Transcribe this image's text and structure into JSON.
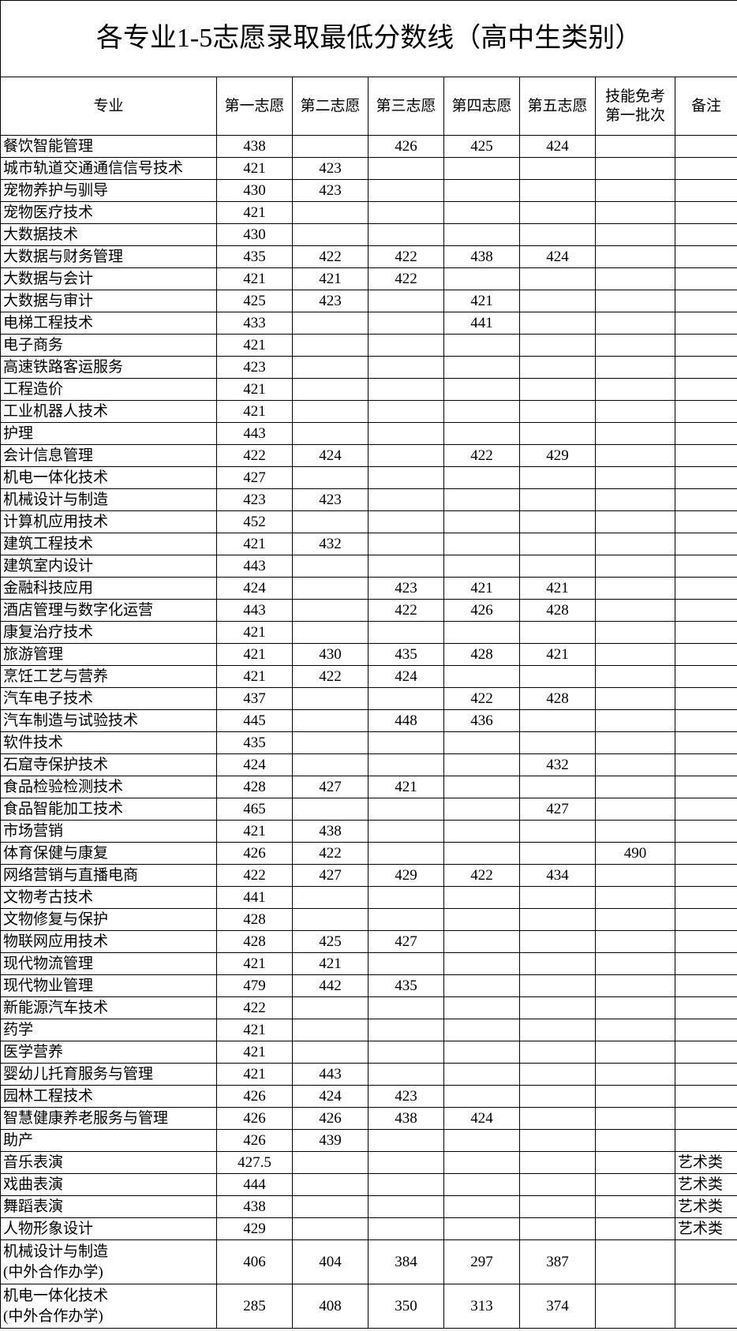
{
  "title": "各专业1-5志愿录取最低分数线（高中生类别）",
  "headers": [
    "专业",
    "第一志愿",
    "第二志愿",
    "第三志愿",
    "第四志愿",
    "第五志愿",
    "技能免考\n第一批次",
    "备注"
  ],
  "rows": [
    [
      "餐饮智能管理",
      "438",
      "",
      "426",
      "425",
      "424",
      "",
      ""
    ],
    [
      "城市轨道交通通信信号技术",
      "421",
      "423",
      "",
      "",
      "",
      "",
      ""
    ],
    [
      "宠物养护与驯导",
      "430",
      "423",
      "",
      "",
      "",
      "",
      ""
    ],
    [
      "宠物医疗技术",
      "421",
      "",
      "",
      "",
      "",
      "",
      ""
    ],
    [
      "大数据技术",
      "430",
      "",
      "",
      "",
      "",
      "",
      ""
    ],
    [
      "大数据与财务管理",
      "435",
      "422",
      "422",
      "438",
      "424",
      "",
      ""
    ],
    [
      "大数据与会计",
      "421",
      "421",
      "422",
      "",
      "",
      "",
      ""
    ],
    [
      "大数据与审计",
      "425",
      "423",
      "",
      "421",
      "",
      "",
      ""
    ],
    [
      "电梯工程技术",
      "433",
      "",
      "",
      "441",
      "",
      "",
      ""
    ],
    [
      "电子商务",
      "421",
      "",
      "",
      "",
      "",
      "",
      ""
    ],
    [
      "高速铁路客运服务",
      "423",
      "",
      "",
      "",
      "",
      "",
      ""
    ],
    [
      "工程造价",
      "421",
      "",
      "",
      "",
      "",
      "",
      ""
    ],
    [
      "工业机器人技术",
      "421",
      "",
      "",
      "",
      "",
      "",
      ""
    ],
    [
      "护理",
      "443",
      "",
      "",
      "",
      "",
      "",
      ""
    ],
    [
      "会计信息管理",
      "422",
      "424",
      "",
      "422",
      "429",
      "",
      ""
    ],
    [
      "机电一体化技术",
      "427",
      "",
      "",
      "",
      "",
      "",
      ""
    ],
    [
      "机械设计与制造",
      "423",
      "423",
      "",
      "",
      "",
      "",
      ""
    ],
    [
      "计算机应用技术",
      "452",
      "",
      "",
      "",
      "",
      "",
      ""
    ],
    [
      "建筑工程技术",
      "421",
      "432",
      "",
      "",
      "",
      "",
      ""
    ],
    [
      "建筑室内设计",
      "443",
      "",
      "",
      "",
      "",
      "",
      ""
    ],
    [
      "金融科技应用",
      "424",
      "",
      "423",
      "421",
      "421",
      "",
      ""
    ],
    [
      "酒店管理与数字化运营",
      "443",
      "",
      "422",
      "426",
      "428",
      "",
      ""
    ],
    [
      "康复治疗技术",
      "421",
      "",
      "",
      "",
      "",
      "",
      ""
    ],
    [
      "旅游管理",
      "421",
      "430",
      "435",
      "428",
      "421",
      "",
      ""
    ],
    [
      "烹饪工艺与营养",
      "421",
      "422",
      "424",
      "",
      "",
      "",
      ""
    ],
    [
      "汽车电子技术",
      "437",
      "",
      "",
      "422",
      "428",
      "",
      ""
    ],
    [
      "汽车制造与试验技术",
      "445",
      "",
      "448",
      "436",
      "",
      "",
      ""
    ],
    [
      "软件技术",
      "435",
      "",
      "",
      "",
      "",
      "",
      ""
    ],
    [
      "石窟寺保护技术",
      "424",
      "",
      "",
      "",
      "432",
      "",
      ""
    ],
    [
      "食品检验检测技术",
      "428",
      "427",
      "421",
      "",
      "",
      "",
      ""
    ],
    [
      "食品智能加工技术",
      "465",
      "",
      "",
      "",
      "427",
      "",
      ""
    ],
    [
      "市场营销",
      "421",
      "438",
      "",
      "",
      "",
      "",
      ""
    ],
    [
      "体育保健与康复",
      "426",
      "422",
      "",
      "",
      "",
      "490",
      ""
    ],
    [
      "网络营销与直播电商",
      "422",
      "427",
      "429",
      "422",
      "434",
      "",
      ""
    ],
    [
      "文物考古技术",
      "441",
      "",
      "",
      "",
      "",
      "",
      ""
    ],
    [
      "文物修复与保护",
      "428",
      "",
      "",
      "",
      "",
      "",
      ""
    ],
    [
      "物联网应用技术",
      "428",
      "425",
      "427",
      "",
      "",
      "",
      ""
    ],
    [
      "现代物流管理",
      "421",
      "421",
      "",
      "",
      "",
      "",
      ""
    ],
    [
      "现代物业管理",
      "479",
      "442",
      "435",
      "",
      "",
      "",
      ""
    ],
    [
      "新能源汽车技术",
      "422",
      "",
      "",
      "",
      "",
      "",
      ""
    ],
    [
      "药学",
      "421",
      "",
      "",
      "",
      "",
      "",
      ""
    ],
    [
      "医学营养",
      "421",
      "",
      "",
      "",
      "",
      "",
      ""
    ],
    [
      "婴幼儿托育服务与管理",
      "421",
      "443",
      "",
      "",
      "",
      "",
      ""
    ],
    [
      "园林工程技术",
      "426",
      "424",
      "423",
      "",
      "",
      "",
      ""
    ],
    [
      "智慧健康养老服务与管理",
      "426",
      "426",
      "438",
      "424",
      "",
      "",
      ""
    ],
    [
      "助产",
      "426",
      "439",
      "",
      "",
      "",
      "",
      ""
    ],
    [
      "音乐表演",
      "427.5",
      "",
      "",
      "",
      "",
      "",
      "艺术类"
    ],
    [
      "戏曲表演",
      "444",
      "",
      "",
      "",
      "",
      "",
      "艺术类"
    ],
    [
      "舞蹈表演",
      "438",
      "",
      "",
      "",
      "",
      "",
      "艺术类"
    ],
    [
      "人物形象设计",
      "429",
      "",
      "",
      "",
      "",
      "",
      "艺术类"
    ],
    [
      "机械设计与制造\n(中外合作办学)",
      "406",
      "404",
      "384",
      "297",
      "387",
      "",
      ""
    ],
    [
      "机电一体化技术\n(中外合作办学)",
      "285",
      "408",
      "350",
      "313",
      "374",
      "",
      ""
    ]
  ]
}
